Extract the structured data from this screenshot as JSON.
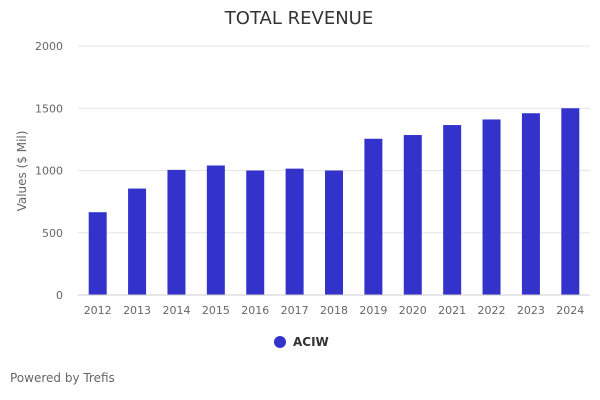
{
  "chart_data": {
    "type": "bar",
    "title": "TOTAL REVENUE",
    "ylabel": "Values ($ Mil)",
    "xlabel": "",
    "ylim": [
      0,
      2000
    ],
    "yticks": [
      0,
      500,
      1000,
      1500,
      2000
    ],
    "grid": true,
    "legend": "bottom-center",
    "categories": [
      "2012",
      "2013",
      "2014",
      "2015",
      "2016",
      "2017",
      "2018",
      "2019",
      "2020",
      "2021",
      "2022",
      "2023",
      "2024"
    ],
    "series": [
      {
        "name": "ACIW",
        "color": "#3333cc",
        "values": [
          665,
          855,
          1005,
          1040,
          1000,
          1015,
          1000,
          1255,
          1285,
          1365,
          1410,
          1460,
          1500
        ]
      }
    ]
  },
  "footer": {
    "credit": "Powered by Trefis"
  }
}
